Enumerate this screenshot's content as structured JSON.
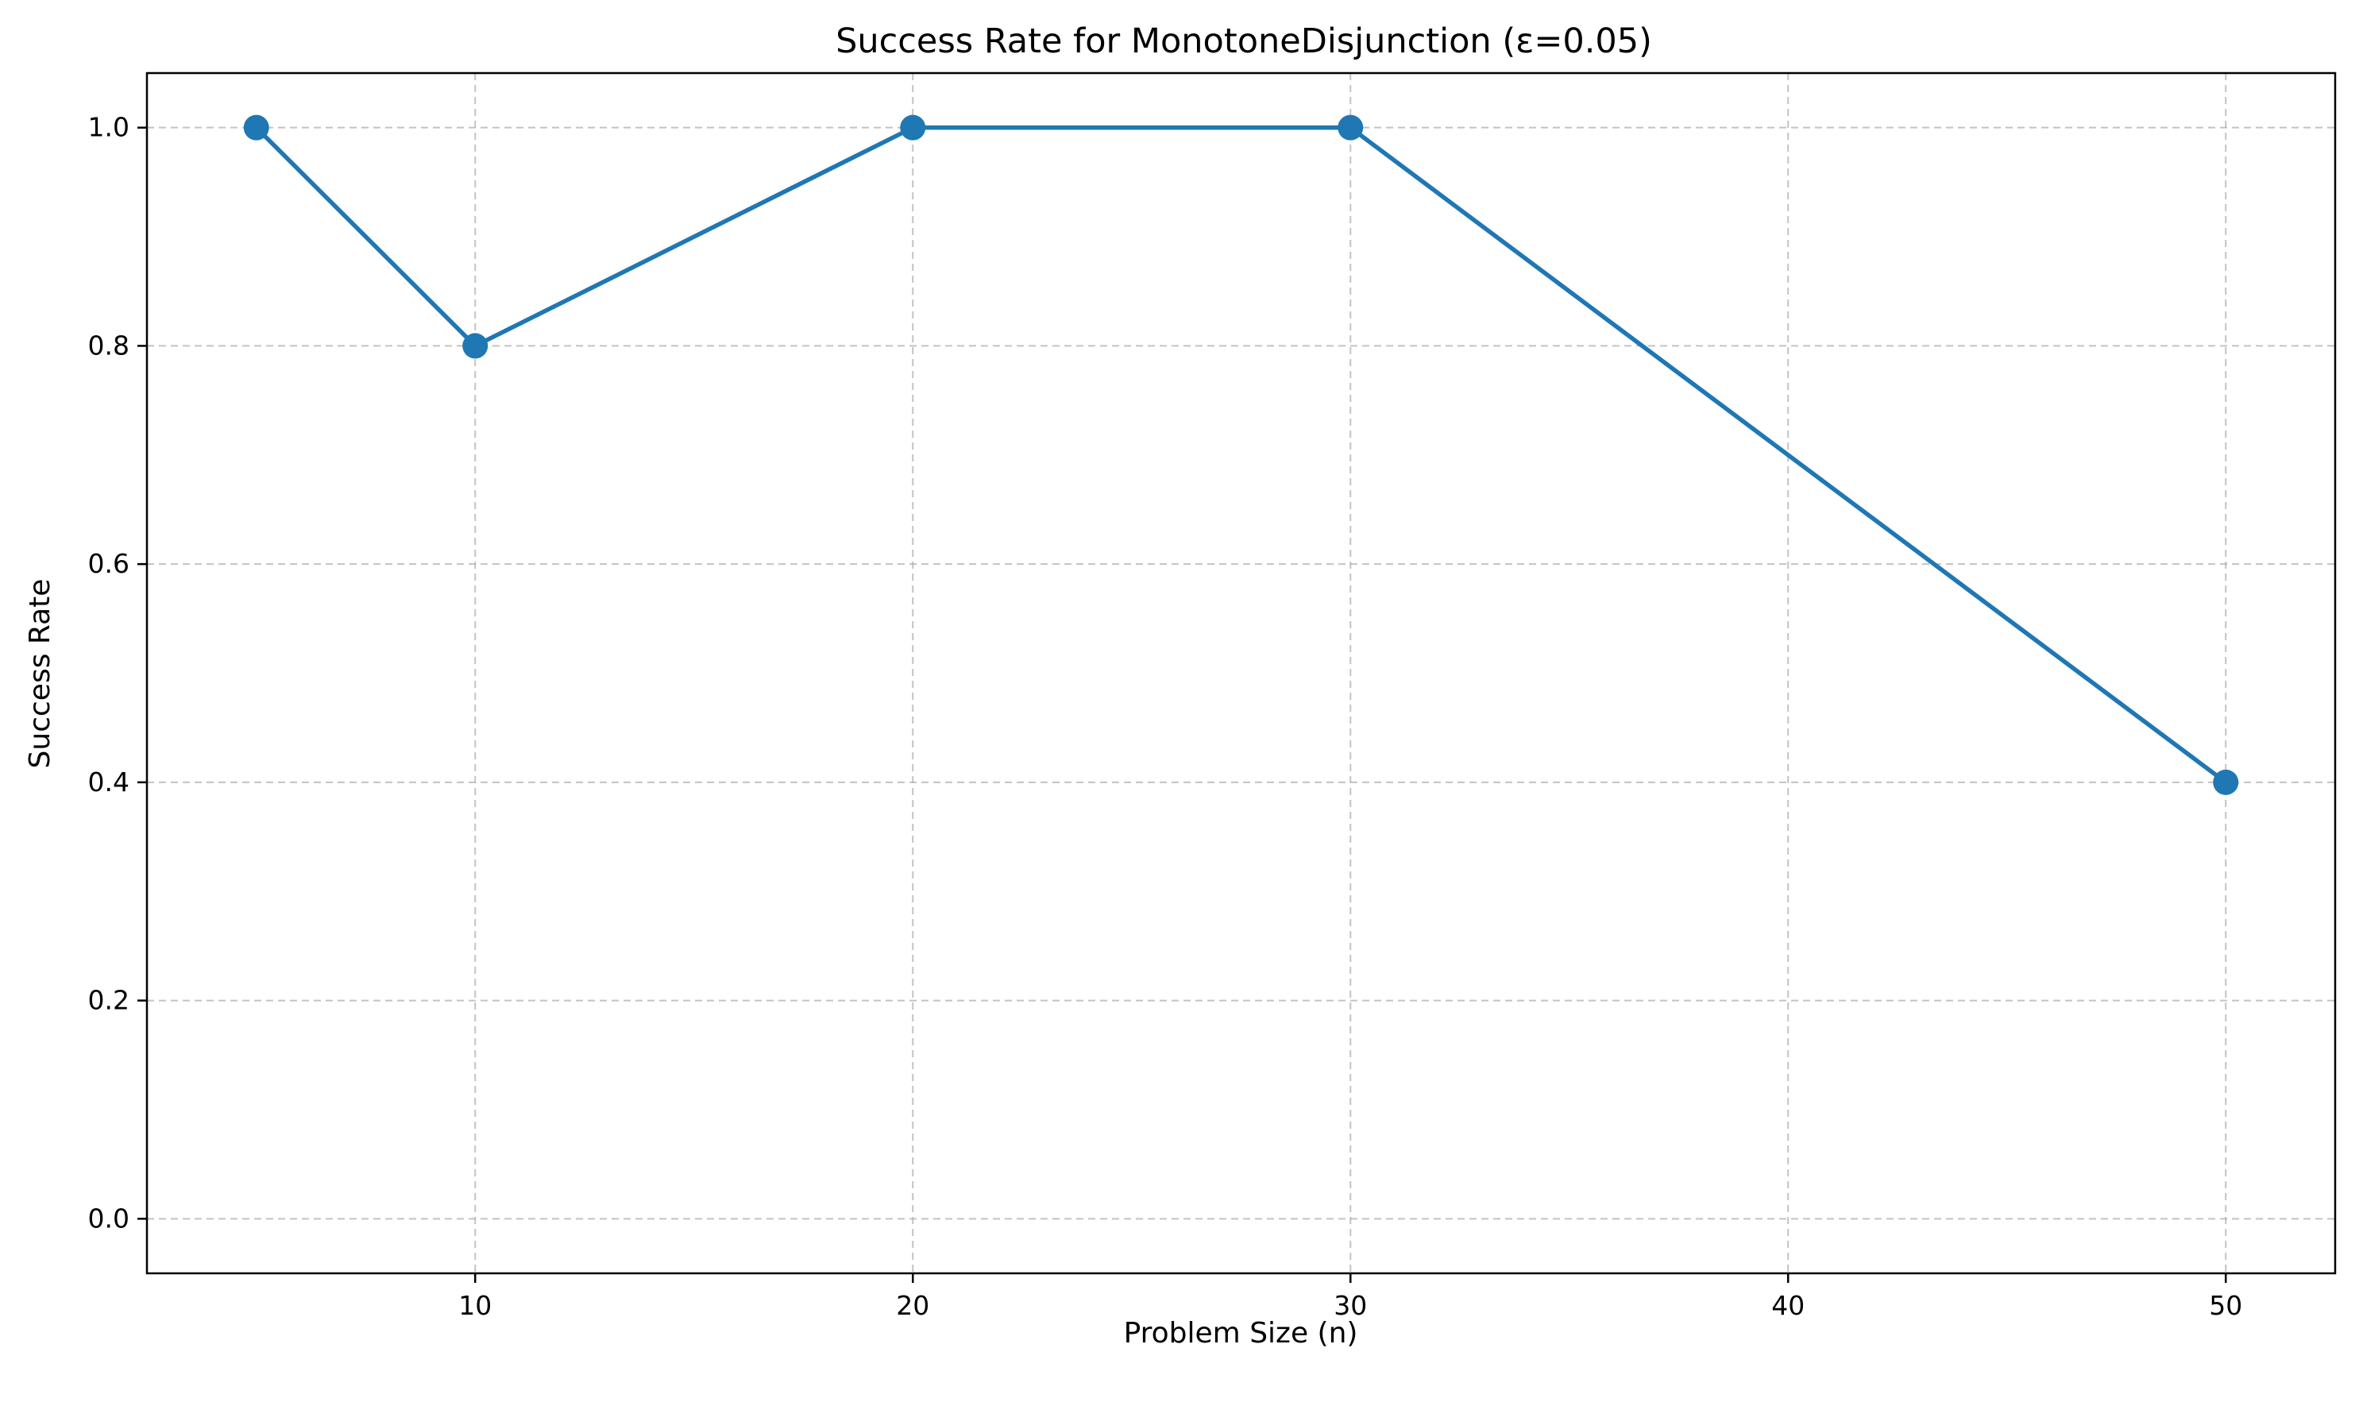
{
  "chart_data": {
    "type": "line",
    "title": "Success Rate for MonotoneDisjunction (ε=0.05)",
    "xlabel": "Problem Size (n)",
    "ylabel": "Success Rate",
    "xlim": [
      2.5,
      52.5
    ],
    "ylim": [
      -0.05,
      1.05
    ],
    "xticks": [
      10,
      20,
      30,
      40,
      50
    ],
    "yticks": [
      0.0,
      0.2,
      0.4,
      0.6,
      0.8,
      1.0
    ],
    "xtick_labels": [
      "10",
      "20",
      "30",
      "40",
      "50"
    ],
    "ytick_labels": [
      "0.0",
      "0.2",
      "0.4",
      "0.6",
      "0.8",
      "1.0"
    ],
    "grid": true,
    "series": [
      {
        "x": [
          5,
          10,
          20,
          30,
          50
        ],
        "y": [
          1.0,
          0.8,
          1.0,
          1.0,
          0.4
        ],
        "color": "#1f77b4",
        "marker": "circle"
      }
    ]
  }
}
